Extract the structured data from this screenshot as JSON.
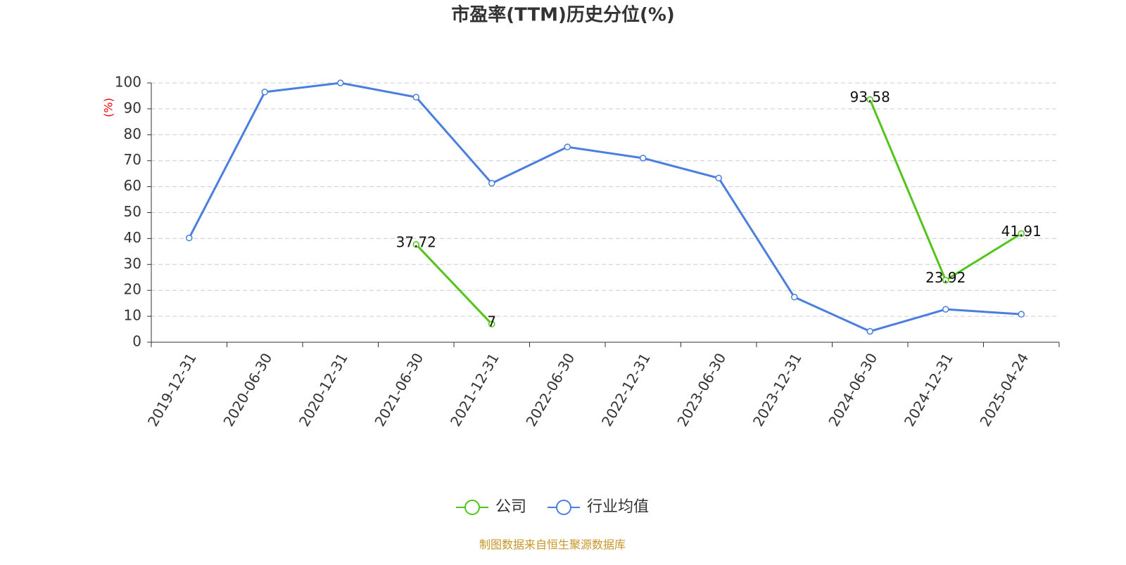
{
  "chart_data": {
    "type": "line",
    "title": "市盈率(TTM)历史分位(%)",
    "y_label": "(%)",
    "categories": [
      "2019-12-31",
      "2020-06-30",
      "2020-12-31",
      "2021-06-30",
      "2021-12-31",
      "2022-06-30",
      "2022-12-31",
      "2023-06-30",
      "2023-12-31",
      "2024-06-30",
      "2024-12-31",
      "2025-04-24"
    ],
    "series": [
      {
        "name": "公司",
        "color": "#52c41a",
        "values": [
          null,
          null,
          null,
          37.72,
          7,
          null,
          null,
          null,
          null,
          93.58,
          23.92,
          41.91
        ],
        "data_labels": true
      },
      {
        "name": "行业均值",
        "color": "#4a7fe0",
        "values": [
          40.2,
          96.5,
          100,
          94.5,
          61.3,
          75.3,
          71,
          63.3,
          17.4,
          4.2,
          12.7,
          10.8
        ],
        "data_labels": false
      }
    ],
    "ylim": [
      0,
      100
    ],
    "yticks": [
      0,
      10,
      20,
      30,
      40,
      50,
      60,
      70,
      80,
      90,
      100
    ],
    "grid": true,
    "source": "制图数据来自恒生聚源数据库"
  }
}
